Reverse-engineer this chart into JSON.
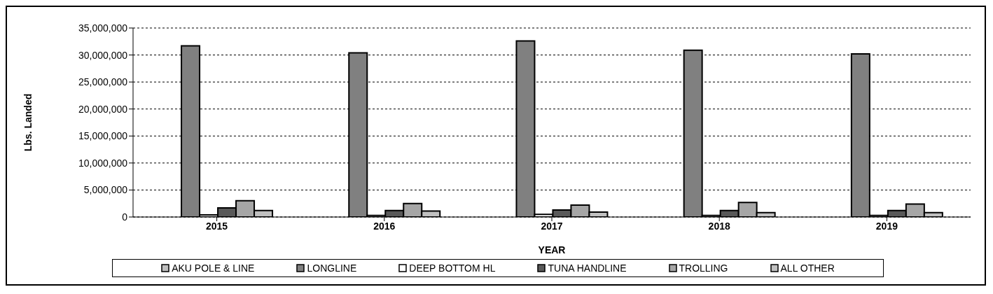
{
  "chart_data": {
    "type": "bar",
    "xlabel": "YEAR",
    "ylabel": "Lbs. Landed",
    "categories": [
      "2015",
      "2016",
      "2017",
      "2018",
      "2019"
    ],
    "series": [
      {
        "name": "AKU POLE & LINE",
        "color": "#bfbfbf",
        "values": [
          0,
          0,
          0,
          0,
          0
        ]
      },
      {
        "name": "LONGLINE",
        "color": "#808080",
        "values": [
          31700000,
          30400000,
          32600000,
          30900000,
          30200000
        ]
      },
      {
        "name": "DEEP BOTTOM HL",
        "color": "#ffffff",
        "values": [
          400000,
          300000,
          500000,
          300000,
          300000
        ]
      },
      {
        "name": "TUNA HANDLINE",
        "color": "#595959",
        "values": [
          1700000,
          1200000,
          1300000,
          1200000,
          1200000
        ]
      },
      {
        "name": "TROLLING",
        "color": "#a6a6a6",
        "values": [
          3000000,
          2500000,
          2200000,
          2700000,
          2400000
        ]
      },
      {
        "name": "ALL OTHER",
        "color": "#c0c0c0",
        "values": [
          1200000,
          1100000,
          900000,
          800000,
          800000
        ]
      }
    ],
    "ylim": [
      0,
      35000000
    ],
    "yticks": [
      0,
      {
        "value": 5000000,
        "label": "5,000,000"
      },
      {
        "value": 10000000,
        "label": "10,000,000"
      },
      {
        "value": 15000000,
        "label": "15,000,000"
      },
      {
        "value": 20000000,
        "label": "20,000,000"
      },
      {
        "value": 25000000,
        "label": "25,000,000"
      },
      {
        "value": 30000000,
        "label": "30,000,000"
      },
      {
        "value": 35000000,
        "label": "35,000,000"
      }
    ],
    "grid": "y",
    "legend": "bottom"
  }
}
